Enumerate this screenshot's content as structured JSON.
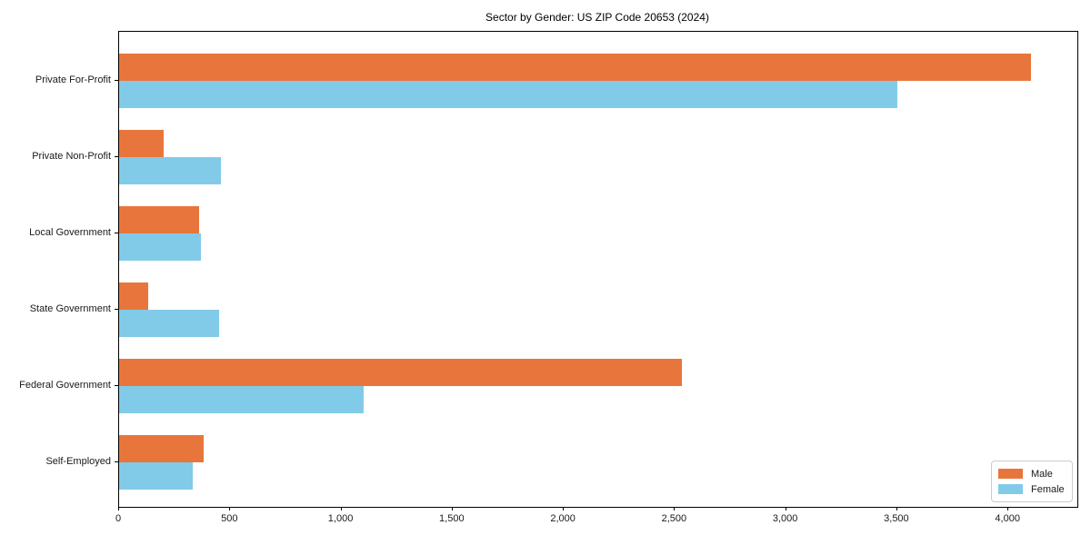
{
  "chart_data": {
    "type": "bar",
    "orientation": "horizontal",
    "title": "Sector by Gender: US ZIP Code 20653 (2024)",
    "categories": [
      "Private For-Profit",
      "Private Non-Profit",
      "Local Government",
      "State Government",
      "Federal Government",
      "Self-Employed"
    ],
    "series": [
      {
        "name": "Male",
        "color": "#E8763C",
        "values": [
          4100,
          200,
          360,
          130,
          2530,
          380
        ]
      },
      {
        "name": "Female",
        "color": "#82CBE8",
        "values": [
          3500,
          460,
          370,
          450,
          1100,
          330
        ]
      }
    ],
    "x_ticks": [
      "0",
      "500",
      "1,000",
      "1,500",
      "2,000",
      "2,500",
      "3,000",
      "3,500",
      "4,000"
    ],
    "x_tick_values": [
      0,
      500,
      1000,
      1500,
      2000,
      2500,
      3000,
      3500,
      4000
    ],
    "xlim": [
      0,
      4310
    ],
    "xlabel": "",
    "ylabel": "",
    "grid": false,
    "legend_position": "lower right"
  }
}
